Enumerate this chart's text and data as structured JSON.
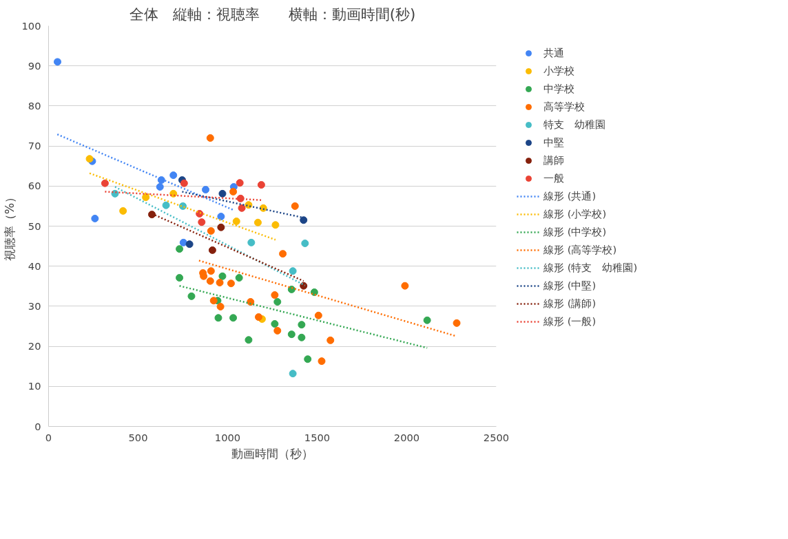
{
  "chart_data": {
    "type": "scatter",
    "title": "全体　縦軸：視聴率　　横軸：動画時間(秒)",
    "xlabel": "動画時間（秒）",
    "ylabel": "視聴率（%）",
    "xlim": [
      0,
      2500
    ],
    "ylim": [
      0,
      100
    ],
    "xticks": [
      0,
      500,
      1000,
      1500,
      2000,
      2500
    ],
    "yticks": [
      0,
      10,
      20,
      30,
      40,
      50,
      60,
      70,
      80,
      90,
      100
    ],
    "grid": "y",
    "legend": "right",
    "marker": "circle",
    "series": [
      {
        "name": "共通",
        "color": "#4285f4",
        "x": [
          50,
          244,
          259,
          630,
          622,
          697,
          753,
          877,
          963,
          1034
        ],
        "values": [
          91,
          66.2,
          51.9,
          61.5,
          59.8,
          62.7,
          45.9,
          59.1,
          52.4,
          59.8
        ]
      },
      {
        "name": "小学校",
        "color": "#fbbc04",
        "x": [
          229,
          416,
          543,
          697,
          1049,
          1169,
          1267,
          1117,
          1199,
          1192
        ],
        "values": [
          66.8,
          53.8,
          57.2,
          58.1,
          51.2,
          50.9,
          50.3,
          55.3,
          54.5,
          26.8
        ]
      },
      {
        "name": "中学校",
        "color": "#34a853",
        "x": [
          731,
          731,
          798,
          971,
          1064,
          948,
          1031,
          944,
          1117,
          1263,
          1278,
          1357,
          1357,
          1413,
          1413,
          1447,
          1484,
          2114
        ],
        "values": [
          44.3,
          37.1,
          32.5,
          37.5,
          37.1,
          27.1,
          27.1,
          31.4,
          21.6,
          25.6,
          31.1,
          34.2,
          23.0,
          25.4,
          22.2,
          16.8,
          33.5,
          26.5
        ]
      },
      {
        "name": "高等学校",
        "color": "#ff6d01",
        "x": [
          903,
          907,
          1031,
          1308,
          1376,
          862,
          866,
          907,
          903,
          956,
          1019,
          922,
          960,
          1128,
          1173,
          1263,
          1278,
          1507,
          1574,
          1525,
          1990,
          2279
        ],
        "values": [
          72.0,
          48.8,
          58.6,
          43.1,
          55.0,
          38.3,
          37.5,
          38.8,
          36.3,
          35.9,
          35.7,
          31.4,
          29.9,
          31.1,
          27.3,
          32.8,
          23.9,
          27.7,
          21.5,
          16.3,
          35.1,
          25.8
        ]
      },
      {
        "name": "特支　幼稚園",
        "color": "#46bdc6",
        "x": [
          371,
          656,
          750,
          1132,
          1432,
          1364,
          1364
        ],
        "values": [
          58.1,
          55.2,
          55.0,
          45.9,
          45.7,
          38.8,
          13.2
        ]
      },
      {
        "name": "中堅",
        "color": "#1c4587",
        "x": [
          746,
          971,
          787,
          1424
        ],
        "values": [
          61.5,
          58.1,
          45.5,
          51.5
        ]
      },
      {
        "name": "講師",
        "color": "#85200c",
        "x": [
          577,
          963,
          915,
          1424
        ],
        "values": [
          52.9,
          49.7,
          44.0,
          35.1
        ]
      },
      {
        "name": "一般",
        "color": "#ea4335",
        "x": [
          315,
          757,
          843,
          855,
          1068,
          1188,
          1072,
          1079
        ],
        "values": [
          60.7,
          60.7,
          53.1,
          51.0,
          60.8,
          60.3,
          56.9,
          54.5
        ]
      },
      {
        "name": "線形 (共通)",
        "type": "line",
        "marker": "none",
        "line_style": "dotted",
        "color": "#4285f4",
        "x": [
          49,
          1034
        ],
        "values": [
          72.9,
          54.0
        ]
      },
      {
        "name": "線形 (小学校)",
        "type": "line",
        "marker": "none",
        "line_style": "dotted",
        "color": "#fbbc04",
        "x": [
          229,
          1267
        ],
        "values": [
          63.2,
          46.6
        ]
      },
      {
        "name": "線形 (中学校)",
        "type": "line",
        "marker": "none",
        "line_style": "dotted",
        "color": "#34a853",
        "x": [
          731,
          2114
        ],
        "values": [
          35.1,
          19.6
        ]
      },
      {
        "name": "線形 (高等学校)",
        "type": "line",
        "marker": "none",
        "line_style": "dotted",
        "color": "#ff6d01",
        "x": [
          840,
          2279
        ],
        "values": [
          41.4,
          22.5
        ]
      },
      {
        "name": "線形 (特支　幼稚園)",
        "type": "line",
        "marker": "none",
        "line_style": "dotted",
        "color": "#46bdc6",
        "x": [
          371,
          1432
        ],
        "values": [
          59.8,
          35.2
        ]
      },
      {
        "name": "線形 (中堅)",
        "type": "line",
        "marker": "none",
        "line_style": "dotted",
        "color": "#1c4587",
        "x": [
          746,
          1424
        ],
        "values": [
          58.6,
          52.1
        ]
      },
      {
        "name": "線形 (講師)",
        "type": "line",
        "marker": "none",
        "line_style": "dotted",
        "color": "#85200c",
        "x": [
          577,
          1424
        ],
        "values": [
          53.1,
          36.3
        ]
      },
      {
        "name": "線形 (一般)",
        "type": "line",
        "marker": "none",
        "line_style": "dotted",
        "color": "#ea4335",
        "x": [
          315,
          1188
        ],
        "values": [
          58.6,
          56.5
        ]
      }
    ]
  }
}
